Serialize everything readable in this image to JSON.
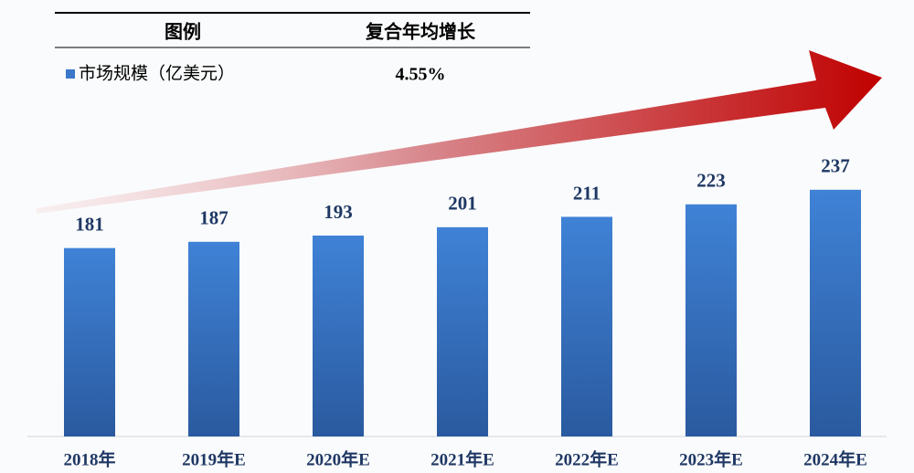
{
  "chart_data": {
    "type": "bar",
    "legend_header": [
      "图例",
      "复合年均增长"
    ],
    "cagr": "4.55%",
    "categories": [
      "2018年",
      "2019年E",
      "2020年E",
      "2021年E",
      "2022年E",
      "2023年E",
      "2024年E"
    ],
    "series": [
      {
        "name": "市场规模（亿美元）",
        "color": "#3a78c9",
        "values": [
          181,
          187,
          193,
          201,
          211,
          223,
          237
        ]
      }
    ]
  }
}
